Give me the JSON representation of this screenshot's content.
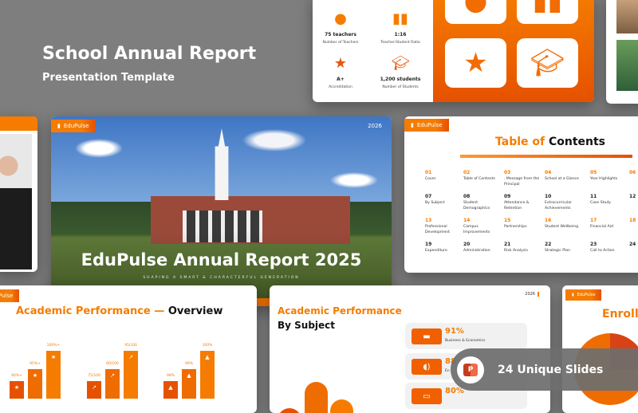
{
  "header": {
    "title": "School Annual Report",
    "subtitle": "Presentation Template"
  },
  "stats_slide": {
    "stats": [
      {
        "icon": "person-icon",
        "value": "75 teachers",
        "label": "Number of Teachers"
      },
      {
        "icon": "bar-chart-icon",
        "value": "1:16",
        "label": "Teacher-Student Ratio"
      },
      {
        "icon": "star-icon",
        "value": "A+",
        "label": "Accreditation"
      },
      {
        "icon": "graduation-cap-icon",
        "value": "1,200 students",
        "label": "Number of Students"
      }
    ]
  },
  "cover_slide": {
    "brand": "EduPulse",
    "year": "2026",
    "title": "EduPulse Annual Report 2025",
    "tagline": "SHAPING A SMART & CHARACTERFUL GENERATION"
  },
  "toc_slide": {
    "brand": "EduPulse",
    "title_accent": "Table of",
    "title_main": "Contents",
    "items": [
      {
        "n": "01",
        "label": "Cover"
      },
      {
        "n": "02",
        "label": "Table of Contents"
      },
      {
        "n": "03",
        "label": ". Message from the Principal"
      },
      {
        "n": "04",
        "label": "School at a Glance"
      },
      {
        "n": "05",
        "label": "Year Highlights"
      },
      {
        "n": "06",
        "label": ""
      },
      {
        "n": "07",
        "label": "By Subject"
      },
      {
        "n": "08",
        "label": "Student Demographics"
      },
      {
        "n": "09",
        "label": "Attendance & Retention"
      },
      {
        "n": "10",
        "label": "Extracurricular Achievements"
      },
      {
        "n": "11",
        "label": "Case Study"
      },
      {
        "n": "12",
        "label": ""
      },
      {
        "n": "13",
        "label": "Professional Development"
      },
      {
        "n": "14",
        "label": "Campus Improvements"
      },
      {
        "n": "15",
        "label": "Partnerships"
      },
      {
        "n": "16",
        "label": "Student Wellbeing"
      },
      {
        "n": "17",
        "label": "Financial Aid"
      },
      {
        "n": "18",
        "label": ""
      },
      {
        "n": "19",
        "label": "Expenditure"
      },
      {
        "n": "20",
        "label": "Administration"
      },
      {
        "n": "21",
        "label": "Risk Analysis"
      },
      {
        "n": "22",
        "label": "Strategic Plan"
      },
      {
        "n": "23",
        "label": "Call to Action"
      },
      {
        "n": "24",
        "label": ""
      }
    ]
  },
  "overview_slide": {
    "brand": "Pulse",
    "title_accent": "Academic Performance —",
    "title_main": "Overview",
    "groups": [
      {
        "icon": "star-icon",
        "bars": [
          {
            "label": "90%+",
            "level": 0.25
          },
          {
            "label": "95%+",
            "level": 0.55
          },
          {
            "label": "100%+",
            "level": 1
          }
        ]
      },
      {
        "icon": "trend-icon",
        "bars": [
          {
            "label": "75/100",
            "level": 0.25
          },
          {
            "label": "80/100",
            "level": 0.55
          },
          {
            "label": "95/100",
            "level": 1
          }
        ]
      },
      {
        "icon": "graduation-cap-icon",
        "bars": [
          {
            "label": "98%",
            "level": 0.25
          },
          {
            "label": "99%",
            "level": 0.55
          },
          {
            "label": "100%",
            "level": 1
          }
        ]
      }
    ]
  },
  "subject_slide": {
    "year": "2026",
    "title_accent": "Academic Performance",
    "title_main": "By Subject",
    "rows": [
      {
        "icon": "briefcase-icon",
        "value": "91%",
        "label": "Business & Economics"
      },
      {
        "icon": "speaker-icon",
        "value": "88",
        "label": "En"
      },
      {
        "icon": "monitor-icon",
        "value": "80%",
        "label": ""
      }
    ]
  },
  "enrollment_slide": {
    "brand": "EduPulse",
    "title": "Enrollm"
  },
  "promo_badge": {
    "icon": "powerpoint-icon",
    "text": "24 Unique Slides"
  },
  "colors": {
    "accent": "#f57c00",
    "accent_dark": "#e65100",
    "background": "#7e7e7e"
  }
}
